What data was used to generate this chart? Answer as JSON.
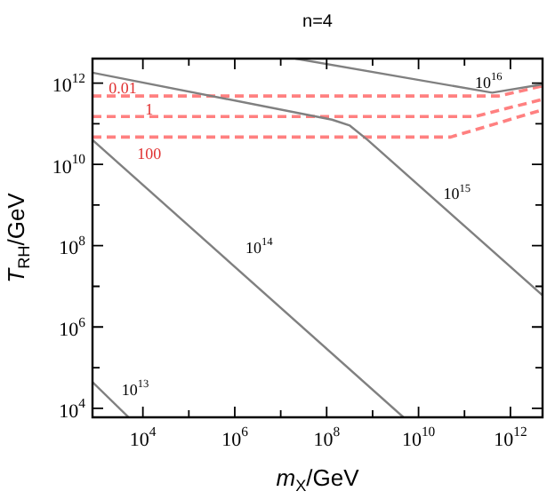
{
  "chart_data": {
    "type": "line",
    "title": "n=4",
    "xlabel": "m$_{X}$/GeV",
    "ylabel": "T$_{RH}$/GeV",
    "log": "xy",
    "grid": false,
    "legend": false,
    "marker": "none",
    "line_style": "solid",
    "xlim": [
      800,
      5000000000000.0
    ],
    "ylim": [
      6000,
      4000000000000.0
    ],
    "xticks": [
      {
        "value": 10000,
        "label": "10$^{4}$"
      },
      {
        "value": 100000,
        "label": null
      },
      {
        "value": 1000000,
        "label": "10$^{6}$"
      },
      {
        "value": 10000000,
        "label": null
      },
      {
        "value": 100000000,
        "label": "10$^{8}$"
      },
      {
        "value": 1000000000,
        "label": null
      },
      {
        "value": 10000000000,
        "label": "10$^{10}$"
      },
      {
        "value": 100000000000,
        "label": null
      },
      {
        "value": 1000000000000,
        "label": "10$^{12}$"
      }
    ],
    "yticks": [
      {
        "value": 10000,
        "label": "10$^{4}$"
      },
      {
        "value": 100000,
        "label": null
      },
      {
        "value": 1000000,
        "label": "10$^{6}$"
      },
      {
        "value": 10000000,
        "label": null
      },
      {
        "value": 100000000,
        "label": "10$^{8}$"
      },
      {
        "value": 1000000000,
        "label": null
      },
      {
        "value": 10000000000,
        "label": "10$^{10}$"
      },
      {
        "value": 100000000000,
        "label": null
      },
      {
        "value": 1000000000000,
        "label": "10$^{12}$"
      }
    ],
    "series": [
      {
        "name": "10$^{13}$",
        "color": "#808080",
        "x": [
          800,
          4900
        ],
        "values": [
          44000,
          6000
        ]
      },
      {
        "name": "10$^{14}$",
        "color": "#808080",
        "x": [
          800,
          4700000000
        ],
        "values": [
          40000000000,
          6000
        ]
      },
      {
        "name": "10$^{15}$",
        "color": "#808080",
        "x": [
          800,
          130000000,
          320000000,
          780000000,
          5000000000000.0
        ],
        "values": [
          1800000000000,
          126000000000,
          90000000000,
          40000000000,
          6000000
        ]
      },
      {
        "name": "10$^{16}$",
        "color": "#808080",
        "x": [
          21000000,
          400000000000,
          5000000000000.0
        ],
        "values": [
          4000000000000.0,
          580000000000,
          930000000000
        ]
      },
      {
        "name": "0.01",
        "color": "#ff8080",
        "line_style": "dashed",
        "x": [
          800,
          550000000000,
          5000000000000.0
        ],
        "values": [
          480000000000,
          480000000000,
          850000000000
        ]
      },
      {
        "name": "1",
        "color": "#ff8080",
        "line_style": "dashed",
        "x": [
          800,
          170000000000,
          5000000000000.0
        ],
        "values": [
          150000000000,
          150000000000,
          400000000000
        ]
      },
      {
        "name": "100",
        "color": "#ff8080",
        "line_style": "dashed",
        "x": [
          800,
          50000000000,
          5000000000000.0
        ],
        "values": [
          47000000000,
          47000000000,
          220000000000
        ]
      }
    ]
  }
}
